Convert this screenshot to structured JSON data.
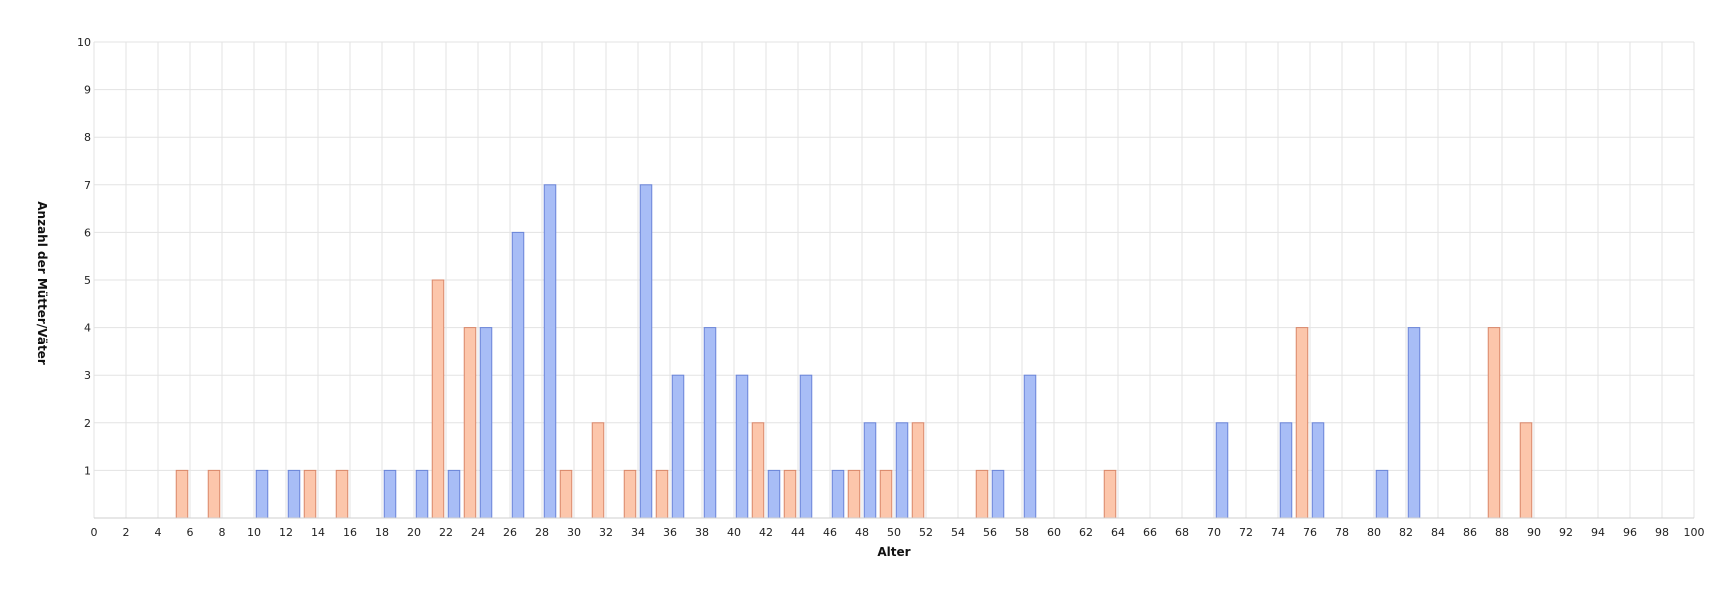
{
  "chart_data": {
    "type": "bar",
    "xlabel": "Alter",
    "ylabel": "Anzahl der Mütter/Väter",
    "xlim": [
      0,
      100
    ],
    "ylim": [
      0,
      10
    ],
    "x_ticks": [
      0,
      2,
      4,
      6,
      8,
      10,
      12,
      14,
      16,
      18,
      20,
      22,
      24,
      26,
      28,
      30,
      32,
      34,
      36,
      38,
      40,
      42,
      44,
      46,
      48,
      50,
      52,
      54,
      56,
      58,
      60,
      62,
      64,
      66,
      68,
      70,
      72,
      74,
      76,
      78,
      80,
      82,
      84,
      86,
      88,
      90,
      92,
      94,
      96,
      98,
      100
    ],
    "y_ticks": [
      1,
      2,
      3,
      4,
      5,
      6,
      7,
      8,
      9,
      10
    ],
    "grid": true,
    "colors": {
      "series_blue": "#a8bdf6",
      "series_orange": "#fcc6ab"
    },
    "series": [
      {
        "color": "#a8bdf6",
        "points": [
          {
            "x": 10,
            "y": 1
          },
          {
            "x": 12,
            "y": 1
          },
          {
            "x": 18,
            "y": 1
          },
          {
            "x": 20,
            "y": 1
          },
          {
            "x": 22,
            "y": 1
          },
          {
            "x": 24,
            "y": 4
          },
          {
            "x": 26,
            "y": 6
          },
          {
            "x": 28,
            "y": 7
          },
          {
            "x": 34,
            "y": 7
          },
          {
            "x": 36,
            "y": 3
          },
          {
            "x": 38,
            "y": 4
          },
          {
            "x": 40,
            "y": 3
          },
          {
            "x": 42,
            "y": 1
          },
          {
            "x": 44,
            "y": 3
          },
          {
            "x": 46,
            "y": 1
          },
          {
            "x": 48,
            "y": 2
          },
          {
            "x": 50,
            "y": 2
          },
          {
            "x": 56,
            "y": 1
          },
          {
            "x": 58,
            "y": 3
          },
          {
            "x": 70,
            "y": 2
          },
          {
            "x": 74,
            "y": 2
          },
          {
            "x": 76,
            "y": 2
          },
          {
            "x": 80,
            "y": 1
          },
          {
            "x": 82,
            "y": 4
          }
        ]
      },
      {
        "color": "#fcc6ab",
        "points": [
          {
            "x": 5,
            "y": 1
          },
          {
            "x": 7,
            "y": 1
          },
          {
            "x": 13,
            "y": 1
          },
          {
            "x": 15,
            "y": 1
          },
          {
            "x": 21,
            "y": 5
          },
          {
            "x": 23,
            "y": 4
          },
          {
            "x": 29,
            "y": 1
          },
          {
            "x": 31,
            "y": 2
          },
          {
            "x": 33,
            "y": 1
          },
          {
            "x": 35,
            "y": 1
          },
          {
            "x": 41,
            "y": 2
          },
          {
            "x": 43,
            "y": 1
          },
          {
            "x": 47,
            "y": 1
          },
          {
            "x": 49,
            "y": 1
          },
          {
            "x": 51,
            "y": 2
          },
          {
            "x": 55,
            "y": 1
          },
          {
            "x": 63,
            "y": 1
          },
          {
            "x": 75,
            "y": 4
          },
          {
            "x": 87,
            "y": 4
          },
          {
            "x": 89,
            "y": 2
          }
        ]
      }
    ]
  }
}
